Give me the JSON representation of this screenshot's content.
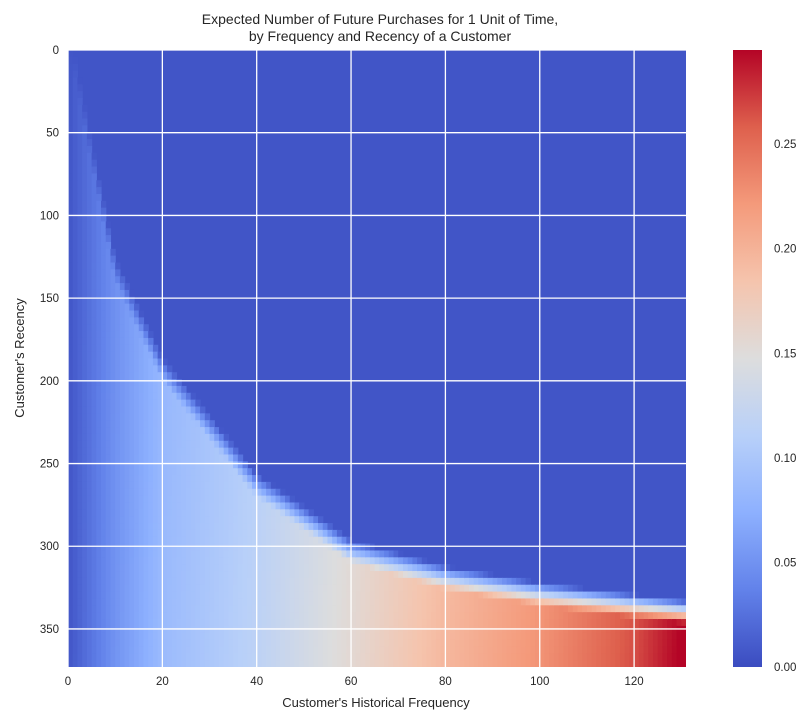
{
  "chart_data": {
    "type": "heatmap",
    "title_lines": [
      "Expected Number of Future Purchases for 1 Unit of Time,",
      "by Frequency and Recency of a Customer"
    ],
    "xlabel": "Customer's Historical Frequency",
    "ylabel": "Customer's Recency",
    "x_range": [
      0,
      131
    ],
    "y_range": [
      0,
      373
    ],
    "y_inverted": true,
    "x_ticks": [
      "0",
      "20",
      "40",
      "60",
      "80",
      "100",
      "120"
    ],
    "y_ticks": [
      "0",
      "50",
      "100",
      "150",
      "200",
      "250",
      "300",
      "350"
    ],
    "colorbar": {
      "colormap": "coolwarm",
      "range": [
        0,
        0.295
      ],
      "ticks": [
        "0.00",
        "0.05",
        "0.10",
        "0.15",
        "0.20",
        "0.25"
      ]
    },
    "grid": true,
    "description_boundary": {
      "recency_threshold_at_frequency": [
        {
          "frequency": 1,
          "recency": 0
        },
        {
          "frequency": 5,
          "recency": 60
        },
        {
          "frequency": 10,
          "recency": 130
        },
        {
          "frequency": 20,
          "recency": 190
        },
        {
          "frequency": 40,
          "recency": 260
        },
        {
          "frequency": 60,
          "recency": 300
        },
        {
          "frequency": 80,
          "recency": 316
        },
        {
          "frequency": 100,
          "recency": 326
        },
        {
          "frequency": 131,
          "recency": 337
        }
      ]
    },
    "value_at_max_recency_by_frequency": [
      {
        "frequency": 0,
        "value": 0.0
      },
      {
        "frequency": 10,
        "value": 0.045
      },
      {
        "frequency": 20,
        "value": 0.08
      },
      {
        "frequency": 40,
        "value": 0.11
      },
      {
        "frequency": 60,
        "value": 0.15
      },
      {
        "frequency": 80,
        "value": 0.19
      },
      {
        "frequency": 100,
        "value": 0.22
      },
      {
        "frequency": 120,
        "value": 0.26
      },
      {
        "frequency": 131,
        "value": 0.295
      }
    ]
  }
}
